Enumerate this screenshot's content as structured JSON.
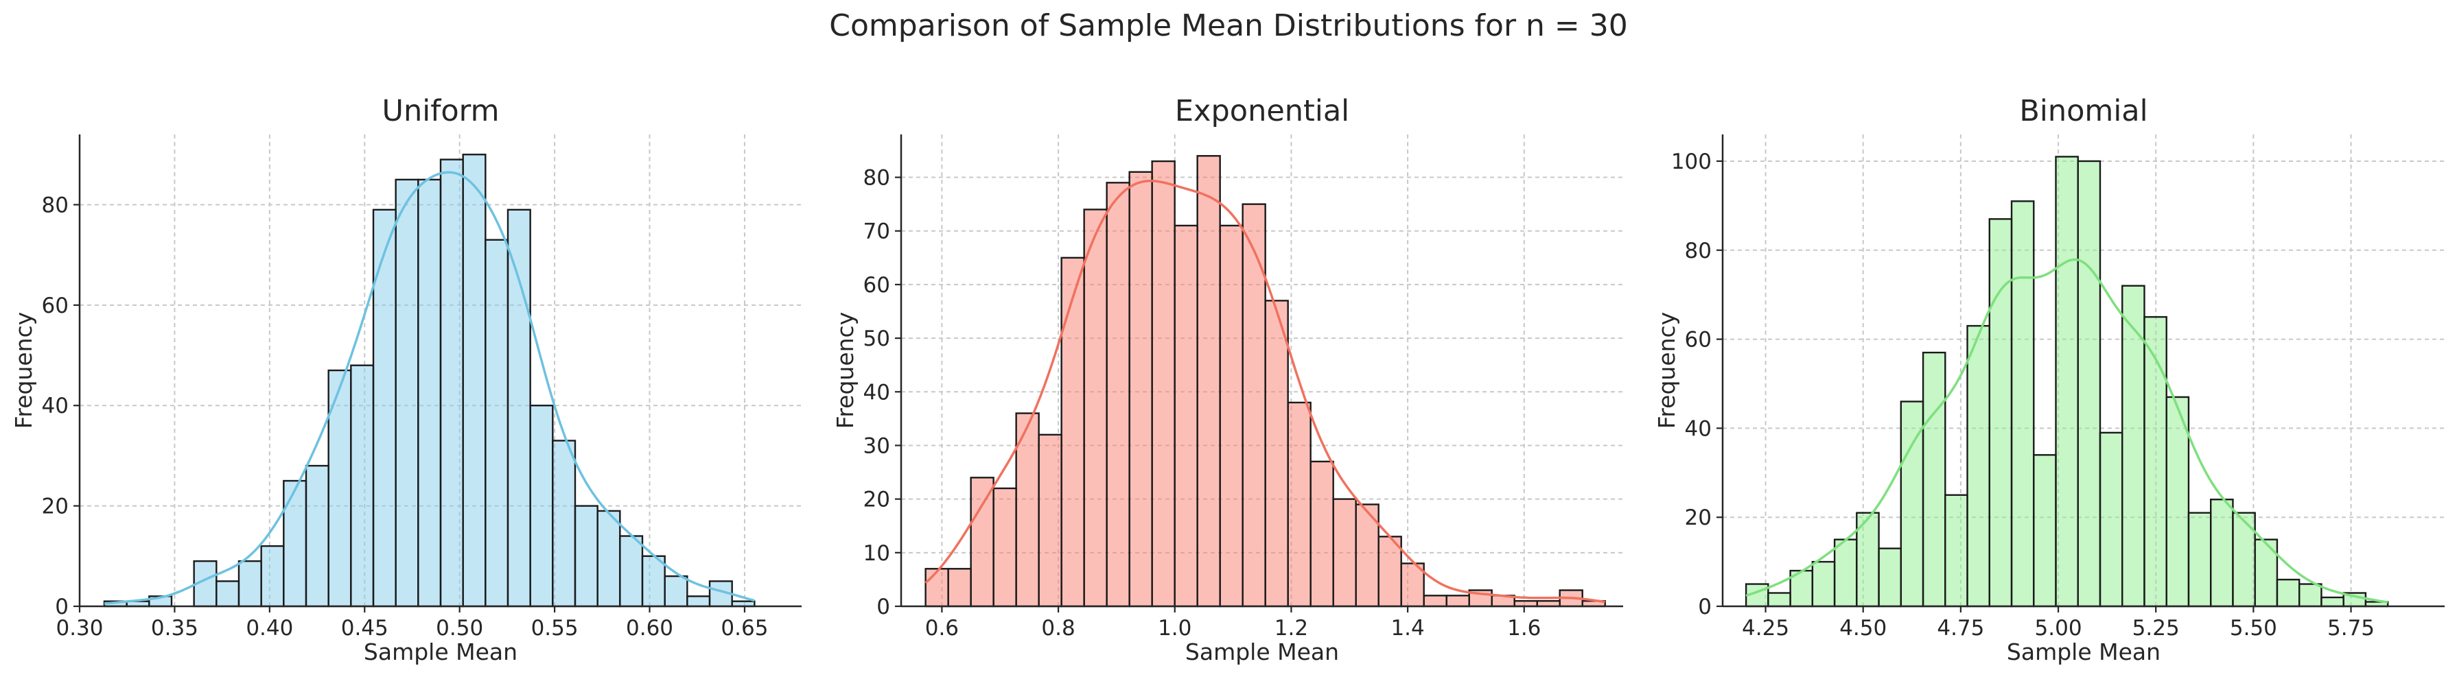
{
  "figure": {
    "title": "Comparison of Sample Mean Distributions for n = 30"
  },
  "chart_data": [
    {
      "type": "bar",
      "title": "Uniform",
      "xlabel": "Sample Mean",
      "ylabel": "Frequency",
      "xlim": [
        0.3,
        0.68
      ],
      "ylim": [
        0,
        94
      ],
      "xticks": [
        0.3,
        0.35,
        0.4,
        0.45,
        0.5,
        0.55,
        0.6,
        0.65
      ],
      "xtick_labels": [
        "0.30",
        "0.35",
        "0.40",
        "0.45",
        "0.50",
        "0.55",
        "0.60",
        "0.65"
      ],
      "yticks": [
        0,
        20,
        40,
        60,
        80
      ],
      "ytick_labels": [
        "0",
        "20",
        "40",
        "60",
        "80"
      ],
      "bin_start": 0.313,
      "bin_width": 0.0118,
      "values": [
        1,
        1,
        2,
        0,
        9,
        5,
        9,
        12,
        25,
        28,
        47,
        48,
        79,
        85,
        85,
        89,
        90,
        73,
        79,
        40,
        33,
        20,
        19,
        14,
        10,
        6,
        2,
        5,
        1
      ],
      "color": "#87ceeb",
      "kde_color": "#6ec2e0",
      "grid": true
    },
    {
      "type": "bar",
      "title": "Exponential",
      "xlabel": "Sample Mean",
      "ylabel": "Frequency",
      "xlim": [
        0.53,
        1.77
      ],
      "ylim": [
        0,
        88
      ],
      "xticks": [
        0.6,
        0.8,
        1.0,
        1.2,
        1.4,
        1.6
      ],
      "xtick_labels": [
        "0.6",
        "0.8",
        "1.0",
        "1.2",
        "1.4",
        "1.6"
      ],
      "yticks": [
        0,
        10,
        20,
        30,
        40,
        50,
        60,
        70,
        80
      ],
      "ytick_labels": [
        "0",
        "10",
        "20",
        "30",
        "40",
        "50",
        "60",
        "70",
        "80"
      ],
      "bin_start": 0.572,
      "bin_width": 0.0389,
      "values": [
        7,
        7,
        24,
        22,
        36,
        32,
        65,
        74,
        79,
        81,
        83,
        71,
        84,
        71,
        75,
        57,
        38,
        27,
        20,
        19,
        13,
        8,
        2,
        2,
        3,
        2,
        1,
        1,
        3,
        1
      ],
      "color": "#fa8072",
      "kde_color": "#f0725f",
      "grid": true
    },
    {
      "type": "bar",
      "title": "Binomial",
      "xlabel": "Sample Mean",
      "ylabel": "Frequency",
      "xlim": [
        4.14,
        5.99
      ],
      "ylim": [
        0,
        106
      ],
      "xticks": [
        4.25,
        4.5,
        4.75,
        5.0,
        5.25,
        5.5,
        5.75
      ],
      "xtick_labels": [
        "4.25",
        "4.50",
        "4.75",
        "5.00",
        "5.25",
        "5.50",
        "5.75"
      ],
      "yticks": [
        0,
        20,
        40,
        60,
        80,
        100
      ],
      "ytick_labels": [
        "0",
        "20",
        "40",
        "60",
        "80",
        "100"
      ],
      "bin_start": 4.2,
      "bin_width": 0.0567,
      "values": [
        5,
        3,
        8,
        10,
        15,
        21,
        13,
        46,
        57,
        25,
        63,
        87,
        91,
        34,
        101,
        100,
        39,
        72,
        65,
        47,
        21,
        24,
        21,
        15,
        6,
        5,
        2,
        3,
        1
      ],
      "color": "#90ee90",
      "kde_color": "#7ee07e",
      "grid": true
    }
  ]
}
